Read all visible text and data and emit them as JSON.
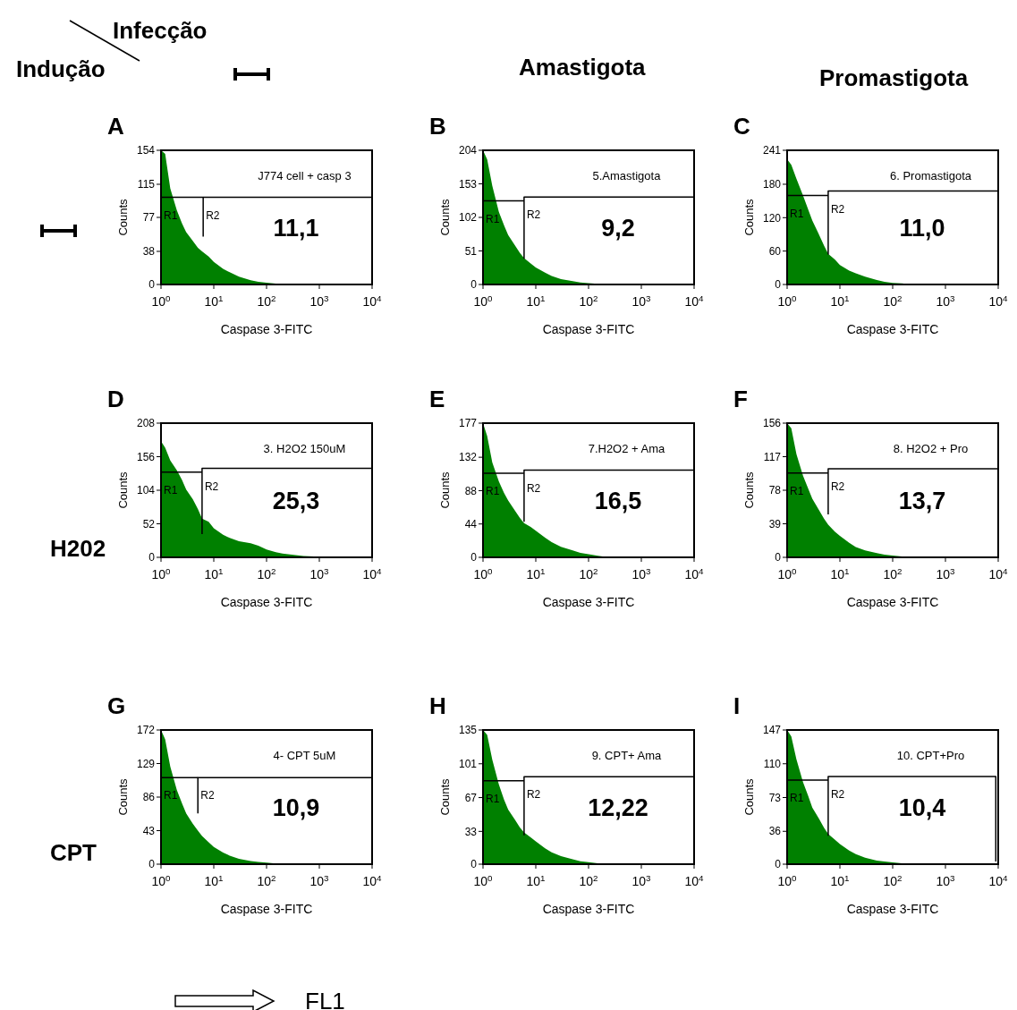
{
  "chart_data": [
    {
      "type": "area",
      "title": "A",
      "ylabel": "Counts",
      "xlabel": "Caspase 3-FITC",
      "log": "x",
      "xlim": [
        1,
        10000
      ],
      "xticks": [
        {
          "value": 1,
          "label": "10$^{0}$"
        },
        {
          "value": 10,
          "label": "10$^{1}$"
        },
        {
          "value": 100,
          "label": "10$^{2}$"
        },
        {
          "value": 1000,
          "label": "10$^{3}$"
        },
        {
          "value": 10000,
          "label": "10$^{4}$"
        }
      ],
      "ylim": [
        0,
        154
      ],
      "yticks": [
        0,
        38,
        77,
        115,
        154
      ],
      "x": [
        1,
        1.2,
        1.5,
        2,
        2.5,
        3,
        4,
        5,
        6,
        8,
        10,
        15,
        20,
        30,
        50,
        70,
        100,
        150,
        200,
        300,
        500,
        1000,
        10000
      ],
      "series": [
        {
          "color": "#008000",
          "values": [
            154,
            150,
            110,
            85,
            70,
            60,
            50,
            42,
            38,
            32,
            26,
            18,
            14,
            9,
            5,
            3,
            2,
            1,
            1,
            0,
            0,
            0,
            0
          ]
        },
        {
          "type": "line",
          "name": "R1",
          "color": "#000000",
          "x": [
            1,
            1,
            6.3
          ],
          "values": [
            65,
            100,
            100
          ]
        },
        {
          "type": "line",
          "name": "R2",
          "color": "#000000",
          "x": [
            6.3,
            6.3,
            10000,
            10000
          ],
          "values": [
            55,
            100,
            100,
            80
          ]
        }
      ],
      "annotations": [
        "J774 cell + casp 3",
        "11,1"
      ]
    },
    {
      "type": "area",
      "title": "B",
      "ylabel": "Counts",
      "xlabel": "Caspase 3-FITC",
      "log": "x",
      "xlim": [
        1,
        10000
      ],
      "xticks": [
        {
          "value": 1,
          "label": "10$^{0}$"
        },
        {
          "value": 10,
          "label": "10$^{1}$"
        },
        {
          "value": 100,
          "label": "10$^{2}$"
        },
        {
          "value": 1000,
          "label": "10$^{3}$"
        },
        {
          "value": 10000,
          "label": "10$^{4}$"
        }
      ],
      "ylim": [
        0,
        204
      ],
      "yticks": [
        0,
        51,
        102,
        153,
        204
      ],
      "x": [
        1,
        1.2,
        1.5,
        2,
        2.5,
        3,
        4,
        5,
        6,
        8,
        10,
        15,
        20,
        30,
        50,
        70,
        100,
        150,
        200,
        300,
        500,
        1000,
        10000
      ],
      "series": [
        {
          "color": "#008000",
          "values": [
            204,
            190,
            150,
            110,
            90,
            75,
            60,
            48,
            40,
            32,
            26,
            18,
            13,
            8,
            5,
            3,
            2,
            1,
            1,
            0,
            0,
            0,
            0
          ]
        },
        {
          "type": "line",
          "name": "R1",
          "color": "#000000",
          "x": [
            1,
            1,
            6
          ],
          "values": [
            96,
            127,
            127
          ]
        },
        {
          "type": "line",
          "name": "R2",
          "color": "#000000",
          "x": [
            6,
            6,
            10000,
            10000
          ],
          "values": [
            39,
            133,
            133,
            42
          ]
        }
      ],
      "annotations": [
        "5.Amastigota",
        "9,2"
      ]
    },
    {
      "type": "area",
      "title": "C",
      "ylabel": "Counts",
      "xlabel": "Caspase 3-FITC",
      "log": "x",
      "xlim": [
        1,
        10000
      ],
      "xticks": [
        {
          "value": 1,
          "label": "10$^{0}$"
        },
        {
          "value": 10,
          "label": "10$^{1}$"
        },
        {
          "value": 100,
          "label": "10$^{2}$"
        },
        {
          "value": 1000,
          "label": "10$^{3}$"
        },
        {
          "value": 10000,
          "label": "10$^{4}$"
        }
      ],
      "ylim": [
        0,
        241
      ],
      "yticks": [
        0,
        60,
        120,
        180,
        241
      ],
      "x": [
        1,
        1.2,
        1.5,
        2,
        2.5,
        3,
        4,
        5,
        6,
        8,
        10,
        15,
        20,
        30,
        50,
        70,
        100,
        150,
        200,
        300,
        500,
        1000,
        10000
      ],
      "series": [
        {
          "color": "#008000",
          "values": [
            225,
            215,
            190,
            160,
            135,
            115,
            90,
            70,
            55,
            45,
            35,
            25,
            20,
            14,
            8,
            5,
            3,
            2,
            1,
            0,
            0,
            0,
            0
          ]
        },
        {
          "type": "line",
          "name": "R1",
          "color": "#000000",
          "x": [
            1,
            1,
            6
          ],
          "values": [
            119,
            160,
            160
          ]
        },
        {
          "type": "line",
          "name": "R2",
          "color": "#000000",
          "x": [
            6,
            6,
            10000,
            10000
          ],
          "values": [
            54,
            168,
            168,
            54
          ]
        }
      ],
      "annotations": [
        "6. Promastigota",
        "11,0"
      ]
    },
    {
      "type": "area",
      "title": "D",
      "ylabel": "Counts",
      "xlabel": "Caspase 3-FITC",
      "log": "x",
      "xlim": [
        1,
        10000
      ],
      "xticks": [
        {
          "value": 1,
          "label": "10$^{0}$"
        },
        {
          "value": 10,
          "label": "10$^{1}$"
        },
        {
          "value": 100,
          "label": "10$^{2}$"
        },
        {
          "value": 1000,
          "label": "10$^{3}$"
        },
        {
          "value": 10000,
          "label": "10$^{4}$"
        }
      ],
      "ylim": [
        0,
        208
      ],
      "yticks": [
        0,
        52,
        104,
        156,
        208
      ],
      "x": [
        1,
        1.2,
        1.5,
        2,
        2.5,
        3,
        4,
        5,
        6,
        8,
        10,
        15,
        20,
        30,
        50,
        70,
        100,
        150,
        200,
        300,
        500,
        1000,
        10000
      ],
      "series": [
        {
          "color": "#008000",
          "values": [
            180,
            170,
            150,
            135,
            120,
            105,
            90,
            75,
            60,
            55,
            45,
            35,
            30,
            25,
            22,
            18,
            12,
            8,
            6,
            4,
            2,
            1,
            0
          ]
        },
        {
          "type": "line",
          "name": "R1",
          "color": "#000000",
          "x": [
            1,
            1,
            6
          ],
          "values": [
            97,
            132,
            132
          ]
        },
        {
          "type": "line",
          "name": "R2",
          "color": "#000000",
          "x": [
            6,
            6,
            10000,
            10000
          ],
          "values": [
            36,
            138,
            138,
            42
          ]
        }
      ],
      "annotations": [
        "3. H2O2 150uM",
        "25,3"
      ]
    },
    {
      "type": "area",
      "title": "E",
      "ylabel": "Counts",
      "xlabel": "Caspase 3-FITC",
      "log": "x",
      "xlim": [
        1,
        10000
      ],
      "xticks": [
        {
          "value": 1,
          "label": "10$^{0}$"
        },
        {
          "value": 10,
          "label": "10$^{1}$"
        },
        {
          "value": 100,
          "label": "10$^{2}$"
        },
        {
          "value": 1000,
          "label": "10$^{3}$"
        },
        {
          "value": 10000,
          "label": "10$^{4}$"
        }
      ],
      "ylim": [
        0,
        177
      ],
      "yticks": [
        0,
        44,
        88,
        132,
        177
      ],
      "x": [
        1,
        1.2,
        1.5,
        2,
        2.5,
        3,
        4,
        5,
        6,
        8,
        10,
        15,
        20,
        30,
        50,
        70,
        100,
        150,
        200,
        300,
        500,
        1000,
        10000
      ],
      "series": [
        {
          "color": "#008000",
          "values": [
            177,
            160,
            125,
            100,
            85,
            75,
            62,
            52,
            45,
            40,
            35,
            26,
            20,
            14,
            9,
            6,
            4,
            2,
            1,
            1,
            0,
            0,
            0
          ]
        },
        {
          "type": "line",
          "name": "R1",
          "color": "#000000",
          "x": [
            1,
            1,
            6
          ],
          "values": [
            82,
            111,
            111
          ]
        },
        {
          "type": "line",
          "name": "R2",
          "color": "#000000",
          "x": [
            6,
            6,
            10000,
            10000
          ],
          "values": [
            47,
            115,
            115,
            50
          ]
        }
      ],
      "annotations": [
        "7.H2O2 + Ama",
        "16,5"
      ]
    },
    {
      "type": "area",
      "title": "F",
      "ylabel": "Counts",
      "xlabel": "Caspase 3-FITC",
      "log": "x",
      "xlim": [
        1,
        10000
      ],
      "xticks": [
        {
          "value": 1,
          "label": "10$^{0}$"
        },
        {
          "value": 10,
          "label": "10$^{1}$"
        },
        {
          "value": 100,
          "label": "10$^{2}$"
        },
        {
          "value": 1000,
          "label": "10$^{3}$"
        },
        {
          "value": 10000,
          "label": "10$^{4}$"
        }
      ],
      "ylim": [
        0,
        156
      ],
      "yticks": [
        0,
        39,
        78,
        117,
        156
      ],
      "x": [
        1,
        1.2,
        1.5,
        2,
        2.5,
        3,
        4,
        5,
        6,
        8,
        10,
        15,
        20,
        30,
        50,
        70,
        100,
        150,
        200,
        300,
        500,
        1000,
        10000
      ],
      "series": [
        {
          "color": "#008000",
          "values": [
            156,
            150,
            120,
            95,
            80,
            68,
            55,
            45,
            38,
            30,
            25,
            17,
            12,
            8,
            5,
            3,
            2,
            1,
            1,
            0,
            0,
            0,
            0
          ]
        },
        {
          "type": "line",
          "name": "R1",
          "color": "#000000",
          "x": [
            1,
            1,
            6
          ],
          "values": [
            76,
            98,
            98
          ]
        },
        {
          "type": "line",
          "name": "R2",
          "color": "#000000",
          "x": [
            6,
            6,
            10000,
            10000
          ],
          "values": [
            50,
            103,
            103,
            46
          ]
        }
      ],
      "annotations": [
        "8. H2O2 + Pro",
        "13,7"
      ]
    },
    {
      "type": "area",
      "title": "G",
      "ylabel": "Counts",
      "xlabel": "Caspase 3-FITC",
      "log": "x",
      "xlim": [
        1,
        10000
      ],
      "xticks": [
        {
          "value": 1,
          "label": "10$^{0}$"
        },
        {
          "value": 10,
          "label": "10$^{1}$"
        },
        {
          "value": 100,
          "label": "10$^{2}$"
        },
        {
          "value": 1000,
          "label": "10$^{3}$"
        },
        {
          "value": 10000,
          "label": "10$^{4}$"
        }
      ],
      "ylim": [
        0,
        172
      ],
      "yticks": [
        0,
        43,
        86,
        129,
        172
      ],
      "x": [
        1,
        1.2,
        1.5,
        2,
        2.5,
        3,
        4,
        5,
        6,
        8,
        10,
        15,
        20,
        30,
        50,
        70,
        100,
        150,
        200,
        300,
        500,
        1000,
        10000
      ],
      "series": [
        {
          "color": "#008000",
          "values": [
            172,
            160,
            125,
            95,
            78,
            65,
            52,
            43,
            36,
            28,
            22,
            15,
            11,
            7,
            4,
            3,
            2,
            1,
            1,
            0,
            0,
            0,
            0
          ]
        },
        {
          "type": "line",
          "name": "R1",
          "color": "#000000",
          "x": [
            1,
            1,
            5
          ],
          "values": [
            81,
            111,
            111
          ]
        },
        {
          "type": "line",
          "name": "R2",
          "color": "#000000",
          "x": [
            5,
            5,
            10000,
            10000
          ],
          "values": [
            65,
            111,
            111,
            81
          ]
        }
      ],
      "annotations": [
        "4- CPT 5uM",
        "10,9"
      ]
    },
    {
      "type": "area",
      "title": "H",
      "ylabel": "Counts",
      "xlabel": "Caspase 3-FITC",
      "log": "x",
      "xlim": [
        1,
        10000
      ],
      "xticks": [
        {
          "value": 1,
          "label": "10$^{0}$"
        },
        {
          "value": 10,
          "label": "10$^{1}$"
        },
        {
          "value": 100,
          "label": "10$^{2}$"
        },
        {
          "value": 1000,
          "label": "10$^{3}$"
        },
        {
          "value": 10000,
          "label": "10$^{4}$"
        }
      ],
      "ylim": [
        0,
        135
      ],
      "yticks": [
        0,
        33,
        67,
        101,
        135
      ],
      "x": [
        1,
        1.2,
        1.5,
        2,
        2.5,
        3,
        4,
        5,
        6,
        8,
        10,
        15,
        20,
        30,
        50,
        70,
        100,
        150,
        200,
        300,
        500,
        1000,
        10000
      ],
      "series": [
        {
          "color": "#008000",
          "values": [
            135,
            130,
            105,
            80,
            65,
            55,
            45,
            37,
            32,
            27,
            23,
            16,
            12,
            8,
            5,
            3,
            2,
            1,
            1,
            0,
            0,
            0,
            0
          ]
        },
        {
          "type": "line",
          "name": "R1",
          "color": "#000000",
          "x": [
            1,
            1,
            6
          ],
          "values": [
            62,
            84,
            84
          ]
        },
        {
          "type": "line",
          "name": "R2",
          "color": "#000000",
          "x": [
            6,
            6,
            10000,
            10000
          ],
          "values": [
            29,
            88,
            88,
            29
          ]
        }
      ],
      "annotations": [
        "9. CPT+ Ama",
        "12,22"
      ]
    },
    {
      "type": "area",
      "title": "I",
      "ylabel": "Counts",
      "xlabel": "Caspase 3-FITC",
      "log": "x",
      "xlim": [
        1,
        10000
      ],
      "xticks": [
        {
          "value": 1,
          "label": "10$^{0}$"
        },
        {
          "value": 10,
          "label": "10$^{1}$"
        },
        {
          "value": 100,
          "label": "10$^{2}$"
        },
        {
          "value": 1000,
          "label": "10$^{3}$"
        },
        {
          "value": 10000,
          "label": "10$^{4}$"
        }
      ],
      "ylim": [
        0,
        147
      ],
      "yticks": [
        0,
        36,
        73,
        110,
        147
      ],
      "x": [
        1,
        1.2,
        1.5,
        2,
        2.5,
        3,
        4,
        5,
        6,
        8,
        10,
        15,
        20,
        30,
        50,
        70,
        100,
        150,
        200,
        300,
        500,
        1000,
        10000
      ],
      "series": [
        {
          "color": "#008000",
          "values": [
            147,
            140,
            115,
            90,
            75,
            62,
            50,
            40,
            33,
            27,
            22,
            15,
            11,
            7,
            4,
            3,
            2,
            1,
            1,
            0,
            0,
            0,
            0
          ]
        },
        {
          "type": "line",
          "name": "R1",
          "color": "#000000",
          "x": [
            1,
            1,
            6
          ],
          "values": [
            69,
            92,
            92
          ]
        },
        {
          "type": "line",
          "name": "R2",
          "color": "#000000",
          "x": [
            6,
            6,
            9000,
            9000
          ],
          "values": [
            31,
            96,
            96,
            3
          ]
        }
      ],
      "annotations": [
        "10. CPT+Pro",
        "10,4"
      ]
    },
    {
      "type": "other",
      "annotations": [
        "Infecção",
        "Indução",
        "Amastigota",
        "Promastigota",
        "H202",
        "CPT",
        "FL1"
      ]
    }
  ]
}
